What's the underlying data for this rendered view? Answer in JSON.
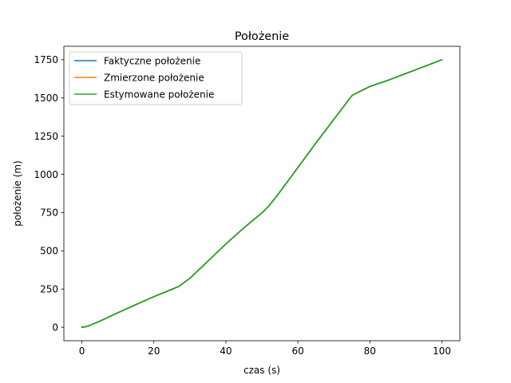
{
  "chart_data": {
    "type": "line",
    "title": "Położenie",
    "xlabel": "czas (s)",
    "ylabel": "położenie (m)",
    "xlim": [
      -5,
      105
    ],
    "ylim": [
      -88,
      1838
    ],
    "x_ticks": [
      0,
      20,
      40,
      60,
      80,
      100
    ],
    "y_ticks": [
      0,
      250,
      500,
      750,
      1000,
      1250,
      1500,
      1750
    ],
    "grid": false,
    "legend_position": "upper-left",
    "series": [
      {
        "name": "Faktyczne położenie",
        "color": "#1f77b4",
        "x": [
          0,
          1,
          2,
          5,
          10,
          15,
          20,
          25,
          27,
          30,
          35,
          40,
          45,
          50,
          52,
          55,
          60,
          65,
          70,
          75,
          76,
          77,
          80,
          85,
          90,
          95,
          100
        ],
        "y": [
          0,
          3,
          10,
          40,
          95,
          148,
          200,
          248,
          268,
          320,
          432,
          545,
          650,
          748,
          795,
          885,
          1045,
          1205,
          1360,
          1515,
          1528,
          1540,
          1575,
          1615,
          1660,
          1705,
          1750
        ]
      },
      {
        "name": "Zmierzone położenie",
        "color": "#ff7f0e",
        "x": [
          0,
          1,
          2,
          5,
          10,
          15,
          20,
          25,
          27,
          30,
          35,
          40,
          45,
          50,
          52,
          55,
          60,
          65,
          70,
          75,
          76,
          77,
          80,
          85,
          90,
          95,
          100
        ],
        "y": [
          2,
          4,
          11,
          41,
          96,
          149,
          201,
          249,
          269,
          321,
          433,
          546,
          651,
          749,
          796,
          886,
          1046,
          1206,
          1361,
          1516,
          1529,
          1541,
          1576,
          1616,
          1661,
          1706,
          1751
        ]
      },
      {
        "name": "Estymowane położenie",
        "color": "#2ca02c",
        "x": [
          0,
          1,
          2,
          5,
          10,
          15,
          20,
          25,
          27,
          30,
          35,
          40,
          45,
          50,
          52,
          55,
          60,
          65,
          70,
          75,
          76,
          77,
          80,
          85,
          90,
          95,
          100
        ],
        "y": [
          0,
          3,
          10,
          40,
          95,
          148,
          200,
          248,
          268,
          320,
          432,
          545,
          650,
          748,
          795,
          885,
          1045,
          1205,
          1360,
          1515,
          1528,
          1540,
          1575,
          1615,
          1660,
          1705,
          1750
        ]
      }
    ]
  }
}
